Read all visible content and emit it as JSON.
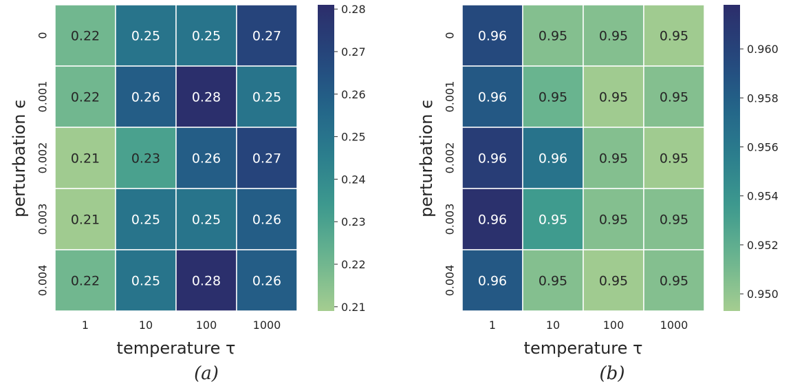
{
  "chart_data": [
    {
      "type": "heatmap",
      "caption": "(a)",
      "xlabel": "temperature τ",
      "ylabel": "perturbation ϵ",
      "x_categories": [
        "1",
        "10",
        "100",
        "1000"
      ],
      "y_categories": [
        "0",
        "0.001",
        "0.002",
        "0.003",
        "0.004"
      ],
      "values": [
        [
          0.22,
          0.25,
          0.25,
          0.27
        ],
        [
          0.22,
          0.26,
          0.28,
          0.25
        ],
        [
          0.21,
          0.23,
          0.26,
          0.27
        ],
        [
          0.21,
          0.25,
          0.25,
          0.26
        ],
        [
          0.22,
          0.25,
          0.28,
          0.26
        ]
      ],
      "cell_labels": [
        [
          "0.22",
          "0.25",
          "0.25",
          "0.27"
        ],
        [
          "0.22",
          "0.26",
          "0.28",
          "0.25"
        ],
        [
          "0.21",
          "0.23",
          "0.26",
          "0.27"
        ],
        [
          "0.21",
          "0.25",
          "0.25",
          "0.26"
        ],
        [
          "0.22",
          "0.25",
          "0.28",
          "0.26"
        ]
      ],
      "colorbar": {
        "range": [
          0.209,
          0.281
        ],
        "ticks": [
          0.21,
          0.22,
          0.23,
          0.24,
          0.25,
          0.26,
          0.27,
          0.28
        ],
        "tick_labels": [
          "0.21",
          "0.22",
          "0.23",
          "0.24",
          "0.25",
          "0.26",
          "0.27",
          "0.28"
        ]
      },
      "colormap": "crest (green → teal → navy)",
      "grid": false
    },
    {
      "type": "heatmap",
      "caption": "(b)",
      "xlabel": "temperature τ",
      "ylabel": "perturbation ϵ",
      "x_categories": [
        "1",
        "10",
        "100",
        "1000"
      ],
      "y_categories": [
        "0",
        "0.001",
        "0.002",
        "0.003",
        "0.004"
      ],
      "values": [
        [
          0.9595,
          0.9505,
          0.9505,
          0.9495
        ],
        [
          0.9585,
          0.9515,
          0.9495,
          0.9505
        ],
        [
          0.9605,
          0.9565,
          0.9505,
          0.9495
        ],
        [
          0.9615,
          0.9535,
          0.9505,
          0.9505
        ],
        [
          0.9585,
          0.9505,
          0.9495,
          0.9505
        ]
      ],
      "cell_labels": [
        [
          "0.96",
          "0.95",
          "0.95",
          "0.95"
        ],
        [
          "0.96",
          "0.95",
          "0.95",
          "0.95"
        ],
        [
          "0.96",
          "0.96",
          "0.95",
          "0.95"
        ],
        [
          "0.96",
          "0.95",
          "0.95",
          "0.95"
        ],
        [
          "0.96",
          "0.95",
          "0.95",
          "0.95"
        ]
      ],
      "colorbar": {
        "range": [
          0.9493,
          0.9618
        ],
        "ticks": [
          0.95,
          0.952,
          0.954,
          0.956,
          0.958,
          0.96
        ],
        "tick_labels": [
          "0.950",
          "0.952",
          "0.954",
          "0.956",
          "0.958",
          "0.960"
        ]
      },
      "colormap": "crest (green → teal → navy)",
      "grid": false
    }
  ],
  "colors": {
    "crest_stops": [
      "#a5cd90",
      "#6cb58f",
      "#3f9b8e",
      "#2c7f8d",
      "#236489",
      "#25467c",
      "#2c2d6b"
    ],
    "cell_border": "#ffffff",
    "dark_text": "#262626",
    "light_text": "#ffffff",
    "axis_text": "#262626"
  }
}
